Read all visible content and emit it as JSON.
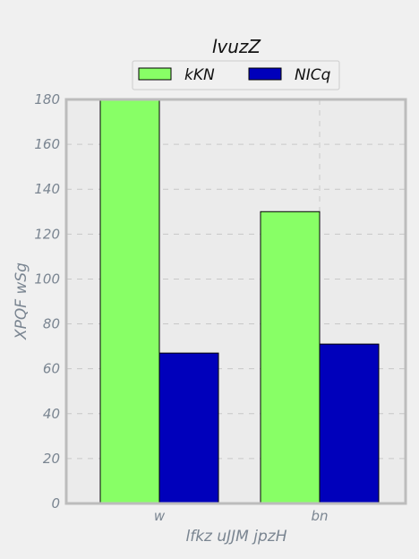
{
  "chart_data": {
    "type": "bar",
    "title": "lvuzZ",
    "xlabel": "lfkz uJJM jpzH",
    "ylabel": "XPQF wSg",
    "categories": [
      "w",
      "bn"
    ],
    "series": [
      {
        "name": "kKN",
        "values": [
          180,
          130
        ],
        "color": "#88ff66"
      },
      {
        "name": "NICq",
        "values": [
          67,
          71
        ],
        "color": "#0000bb"
      }
    ],
    "ylim": [
      0,
      180
    ],
    "yticks": [
      0,
      20,
      40,
      60,
      80,
      100,
      120,
      140,
      160,
      180
    ],
    "grid": true,
    "legend_position": "top-center"
  }
}
